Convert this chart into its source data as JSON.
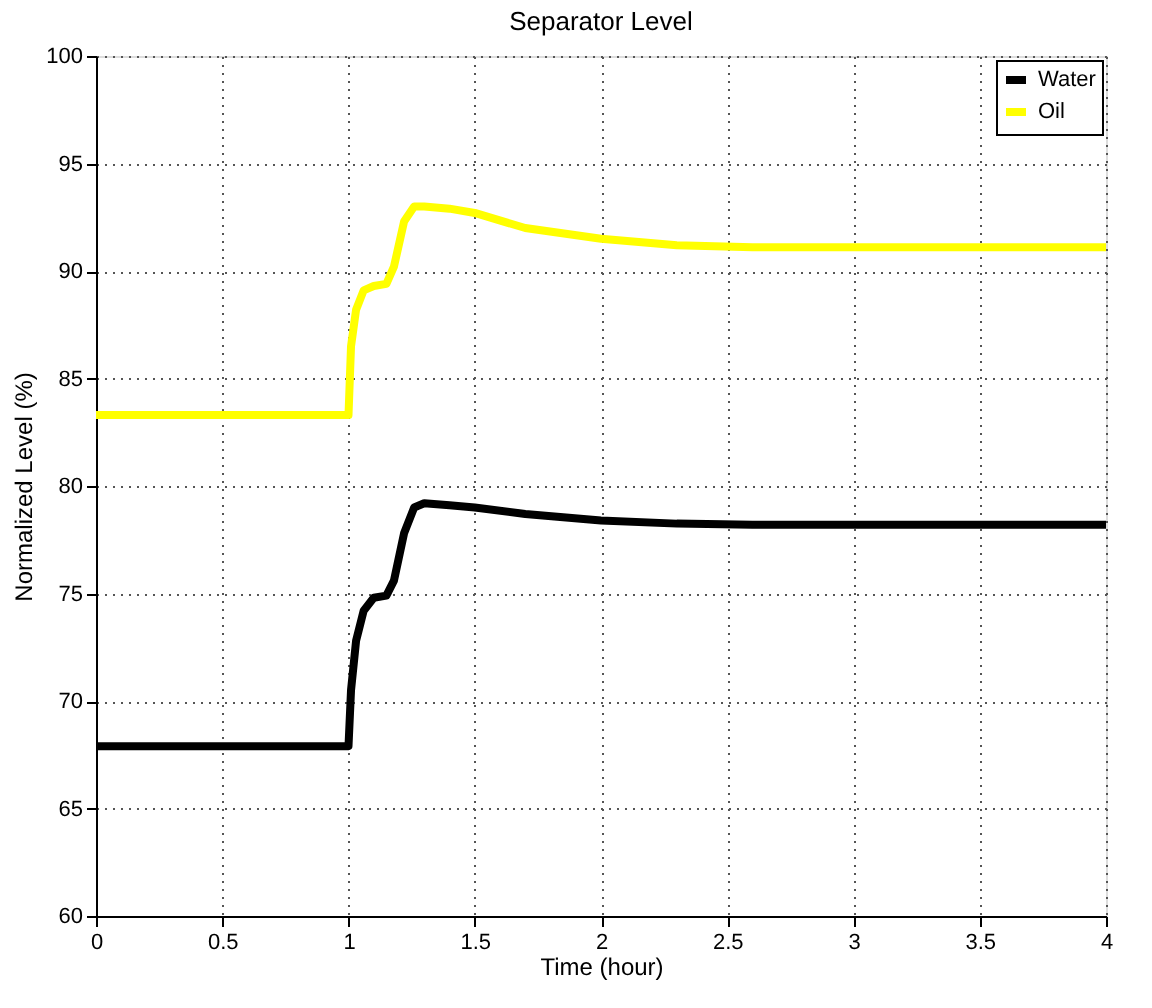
{
  "chart_data": {
    "type": "line",
    "title": "Separator Level",
    "xlabel": "Time (hour)",
    "ylabel": "Normalized Level (%)",
    "xlim": [
      0,
      4
    ],
    "xticks": [
      0,
      0.5,
      1,
      1.5,
      2,
      2.5,
      3,
      3.5,
      4
    ],
    "ylim": [
      60,
      100
    ],
    "yticks": [
      60,
      65,
      70,
      75,
      80,
      85,
      90,
      95,
      100
    ],
    "grid": true,
    "legend": "top right",
    "line_style": "solid",
    "marker": "none",
    "series": [
      {
        "name": "Water",
        "color": "#000000",
        "x": [
          0,
          1.0,
          1.01,
          1.03,
          1.06,
          1.1,
          1.15,
          1.18,
          1.22,
          1.26,
          1.3,
          1.4,
          1.5,
          1.7,
          2.0,
          2.3,
          2.6,
          3.0,
          3.5,
          4.0
        ],
        "values": [
          67.9,
          67.9,
          70.5,
          72.8,
          74.2,
          74.8,
          74.9,
          75.6,
          77.8,
          79.0,
          79.2,
          79.1,
          79.0,
          78.7,
          78.4,
          78.25,
          78.2,
          78.2,
          78.2,
          78.2
        ]
      },
      {
        "name": "Oil",
        "color": "#ffff00",
        "x": [
          0,
          1.0,
          1.01,
          1.03,
          1.06,
          1.1,
          1.15,
          1.18,
          1.22,
          1.26,
          1.3,
          1.4,
          1.5,
          1.7,
          2.0,
          2.3,
          2.6,
          3.0,
          3.5,
          4.0
        ],
        "values": [
          83.3,
          83.3,
          86.5,
          88.2,
          89.1,
          89.3,
          89.4,
          90.2,
          92.3,
          93.0,
          93.0,
          92.9,
          92.7,
          92.0,
          91.5,
          91.2,
          91.1,
          91.1,
          91.1,
          91.1
        ]
      }
    ]
  }
}
